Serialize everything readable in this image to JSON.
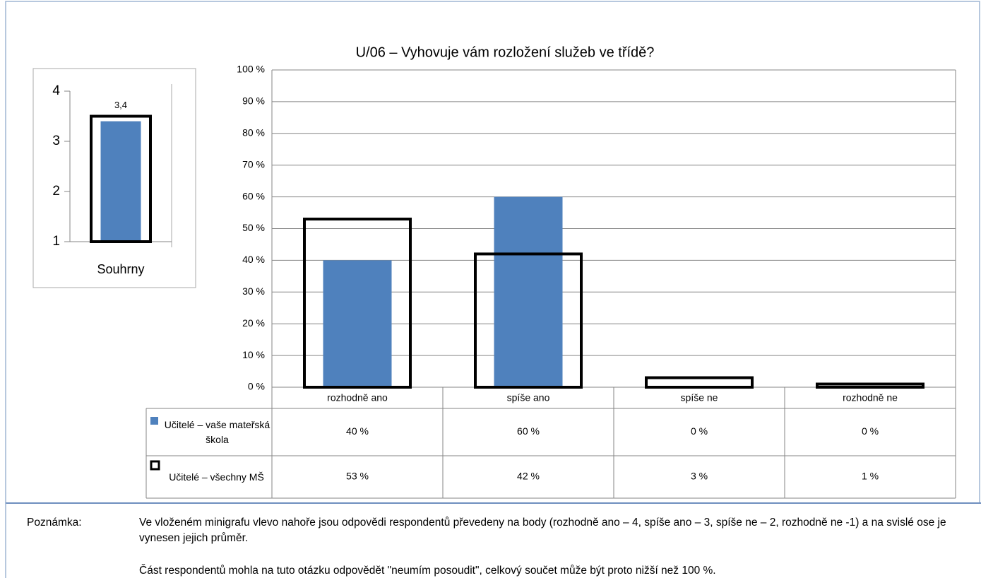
{
  "chart_data": [
    {
      "type": "bar",
      "title": "U/06 – Vyhovuje vám rozložení služeb ve třídě?",
      "categories": [
        "rozhodně ano",
        "spíše ano",
        "spíše ne",
        "rozhodně ne"
      ],
      "series": [
        {
          "name": "Učitelé – vaše mateřská škola",
          "color": "#4f81bd",
          "style": "filled",
          "values": [
            40,
            60,
            0,
            0
          ],
          "value_labels": [
            "40 %",
            "60 %",
            "0 %",
            "0 %"
          ]
        },
        {
          "name": "Učitelé – všechny MŠ",
          "color": "#000000",
          "style": "outline",
          "values": [
            53,
            42,
            3,
            1
          ],
          "value_labels": [
            "53 %",
            "42 %",
            "3 %",
            "1 %"
          ]
        }
      ],
      "ylim": [
        0,
        100
      ],
      "yticks": [
        {
          "value": 0,
          "label": "0 %"
        },
        {
          "value": 10,
          "label": "10 %"
        },
        {
          "value": 20,
          "label": "20 %"
        },
        {
          "value": 30,
          "label": "30 %"
        },
        {
          "value": 40,
          "label": "40 %"
        },
        {
          "value": 50,
          "label": "50 %"
        },
        {
          "value": 60,
          "label": "60 %"
        },
        {
          "value": 70,
          "label": "70 %"
        },
        {
          "value": 80,
          "label": "80 %"
        },
        {
          "value": 90,
          "label": "90 %"
        },
        {
          "value": 100,
          "label": "100 %"
        }
      ],
      "grid": true
    },
    {
      "type": "bar",
      "categories": [
        "Souhrny"
      ],
      "series": [
        {
          "color": "#4f81bd",
          "style": "filled",
          "values": [
            3.4
          ],
          "value_labels": [
            "3,4"
          ]
        },
        {
          "color": "#000000",
          "style": "outline",
          "values": [
            3.5
          ]
        }
      ],
      "ylim": [
        1,
        4
      ],
      "yticks": [
        1,
        2,
        3,
        4
      ]
    }
  ],
  "note": {
    "label": "Poznámka:",
    "paragraphs": [
      "Ve vloženém minigrafu vlevo nahoře jsou odpovědi respondentů převedeny na body (rozhodně ano – 4, spíše ano – 3, spíše ne – 2, rozhodně ne -1) a na svislé ose je vynesen jejich průměr.",
      "Část respondentů mohla na tuto otázku odpovědět \"neumím posoudit\", celkový součet může být proto nižší než 100 %."
    ]
  }
}
